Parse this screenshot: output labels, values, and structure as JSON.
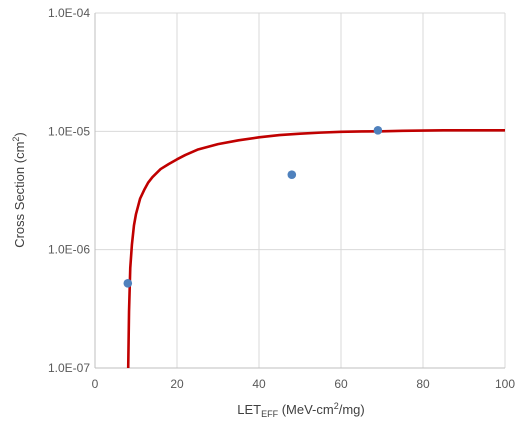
{
  "chart_data": {
    "type": "scatter",
    "xlabel": {
      "main": "LET",
      "sub": "EFF",
      "rest": " (MeV-cm",
      "sup": "2",
      "tail": "/mg)"
    },
    "ylabel": {
      "main": "Cross Section (cm",
      "sup": "2",
      "tail": ")"
    },
    "xlim": [
      0,
      100
    ],
    "ylim": [
      1e-07,
      0.0001
    ],
    "yscale": "log",
    "grid": true,
    "x_ticks": [
      0,
      20,
      40,
      60,
      80,
      100
    ],
    "x_tick_labels": [
      "0",
      "20",
      "40",
      "60",
      "80",
      "100"
    ],
    "y_ticks": [
      1e-07,
      1e-06,
      1e-05,
      0.0001
    ],
    "y_tick_labels": [
      "1.0E-07",
      "1.0E-06",
      "1.0E-05",
      "1.0E-04"
    ],
    "series": [
      {
        "kind": "points",
        "color": "#4F81BD",
        "x": [
          8,
          48,
          69
        ],
        "y": [
          5.2e-07,
          4.3e-06,
          1.02e-05
        ]
      },
      {
        "kind": "line",
        "color": "#C00000",
        "x": [
          8.1,
          8.3,
          8.6,
          9,
          9.5,
          10,
          11,
          12,
          13,
          14,
          16,
          18,
          20,
          22,
          25,
          30,
          35,
          40,
          45,
          50,
          55,
          60,
          65,
          70,
          75,
          80,
          85,
          90,
          95,
          100
        ],
        "y": [
          1e-07,
          3e-07,
          7e-07,
          1.1e-06,
          1.6e-06,
          2e-06,
          2.7e-06,
          3.2e-06,
          3.7e-06,
          4.1e-06,
          4.8e-06,
          5.3e-06,
          5.8e-06,
          6.3e-06,
          7e-06,
          7.8e-06,
          8.4e-06,
          8.9e-06,
          9.3e-06,
          9.55e-06,
          9.75e-06,
          9.9e-06,
          9.98e-06,
          1e-05,
          1.01e-05,
          1.015e-05,
          1.02e-05,
          1.02e-05,
          1.02e-05,
          1.02e-05
        ]
      }
    ]
  }
}
